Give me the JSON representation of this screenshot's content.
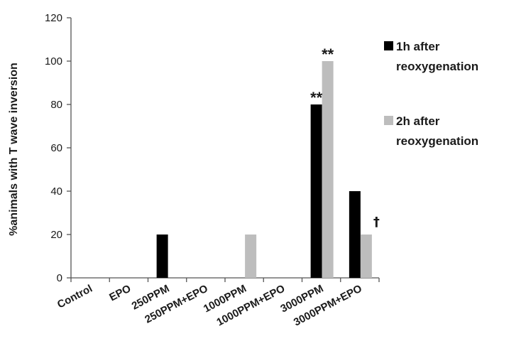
{
  "chart_data": {
    "type": "bar",
    "ylabel": "%animals with T wave inversion",
    "xlabel": "",
    "ylim": [
      0,
      120
    ],
    "yticks": [
      0,
      20,
      40,
      60,
      80,
      100,
      120
    ],
    "categories": [
      "Control",
      "EPO",
      "250PPM",
      "250PPM+EPO",
      "1000PPM",
      "1000PPM+EPO",
      "3000PPM",
      "3000PPM+EPO"
    ],
    "series": [
      {
        "name": "1h after reoxygenation",
        "legend_lines": [
          "1h after",
          "reoxygenation"
        ],
        "color": "#000000",
        "values": [
          0,
          0,
          20,
          0,
          0,
          0,
          80,
          40
        ]
      },
      {
        "name": "2h after reoxygenation",
        "legend_lines": [
          "2h after",
          "reoxygenation"
        ],
        "color": "#bdbdbd",
        "values": [
          0,
          0,
          0,
          0,
          20,
          0,
          100,
          20
        ]
      }
    ],
    "annotations": [
      {
        "text": "**",
        "category": "3000PPM",
        "series": 0
      },
      {
        "text": "**",
        "category": "3000PPM",
        "series": 1
      },
      {
        "text": "†",
        "category": "3000PPM+EPO",
        "series": 1
      }
    ],
    "legend_position": "right",
    "grid": false
  }
}
